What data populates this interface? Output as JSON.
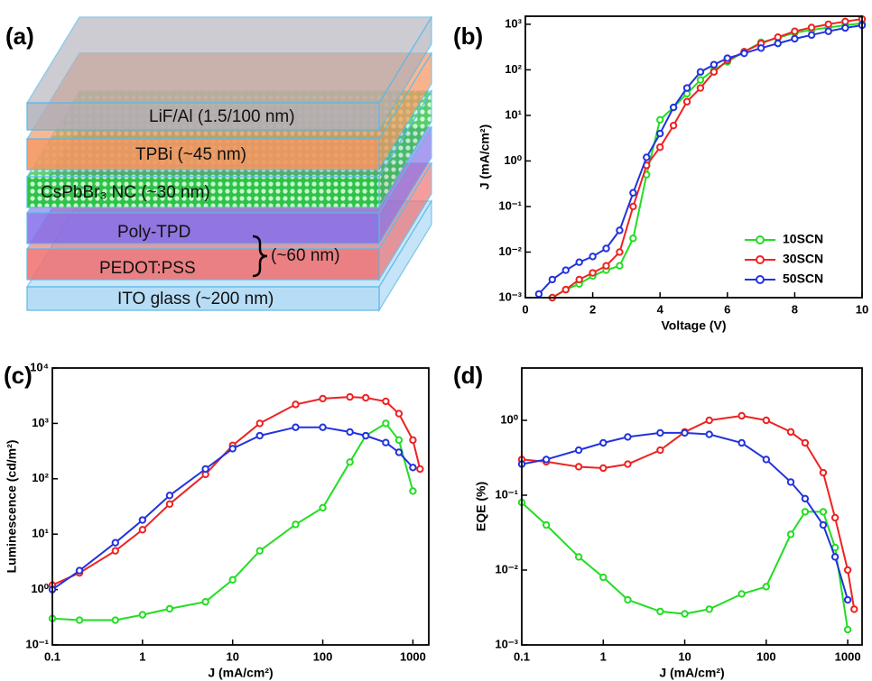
{
  "diagram": {
    "label": "(a)",
    "layers": [
      "LiF/Al (1.5/100 nm)",
      "TPBi (~45 nm)",
      "CsPbBr₃ NC (~30 nm)",
      "Poly-TPD",
      "PEDOT:PSS",
      "ITO glass (~200 nm)"
    ],
    "bracket_label": "(~60 nm)"
  },
  "chart_data": [
    {
      "type": "line",
      "label": "(b)",
      "x_label": "Voltage (V)",
      "y_label": "J (mA/cm²)",
      "y_scale": "log",
      "grid": false,
      "legend": "lower right",
      "x": [
        0.4,
        0.8,
        1.2,
        1.6,
        2,
        2.4,
        2.8,
        3.2,
        3.6,
        4,
        4.4,
        4.8,
        5.2,
        5.6,
        6,
        6.5,
        7,
        7.5,
        8,
        8.5,
        9,
        9.5,
        10
      ],
      "xlim": [
        0,
        10
      ],
      "xticks": [
        0,
        2,
        4,
        6,
        8,
        10
      ],
      "ylim": [
        0.001,
        1500
      ],
      "yticks": [
        {
          "value": 0.001,
          "label": "10⁻³"
        },
        {
          "value": 0.01,
          "label": "10⁻²"
        },
        {
          "value": 0.1,
          "label": "10⁻¹"
        },
        {
          "value": 1,
          "label": "10⁰"
        },
        {
          "value": 10,
          "label": "10¹"
        },
        {
          "value": 100,
          "label": "10²"
        },
        {
          "value": 1000,
          "label": "10³"
        }
      ],
      "series": [
        {
          "name": "10SCN",
          "color": "#22dd22",
          "values": [
            null,
            0.001,
            0.0015,
            0.002,
            0.003,
            0.004,
            0.005,
            0.02,
            0.5,
            8,
            15,
            30,
            60,
            100,
            150,
            250,
            400,
            500,
            650,
            750,
            850,
            950,
            1050
          ]
        },
        {
          "name": "30SCN",
          "color": "#ee2222",
          "values": [
            null,
            0.001,
            0.0015,
            0.0025,
            0.0035,
            0.005,
            0.01,
            0.1,
            0.8,
            2,
            6,
            20,
            40,
            90,
            160,
            250,
            380,
            520,
            700,
            850,
            1000,
            1150,
            1300
          ]
        },
        {
          "name": "50SCN",
          "color": "#2233dd",
          "values": [
            0.0012,
            0.0025,
            0.004,
            0.006,
            0.008,
            0.012,
            0.03,
            0.2,
            1.2,
            4,
            15,
            40,
            90,
            130,
            180,
            230,
            300,
            380,
            480,
            580,
            700,
            830,
            950
          ]
        }
      ]
    },
    {
      "type": "line",
      "label": "(c)",
      "x_label": "J (mA/cm²)",
      "y_label": "Luminescence (cd/m²)",
      "x_scale": "log",
      "y_scale": "log",
      "grid": false,
      "x": [
        0.1,
        0.2,
        0.5,
        1,
        2,
        5,
        10,
        20,
        50,
        100,
        200,
        300,
        500,
        700,
        1000,
        1200
      ],
      "xlim": [
        0.1,
        1500
      ],
      "xticks": [
        0.1,
        1,
        10,
        100,
        1000
      ],
      "ylim": [
        0.1,
        10000
      ],
      "yticks": [
        {
          "value": 0.1,
          "label": "10⁻¹"
        },
        {
          "value": 1,
          "label": "10⁰"
        },
        {
          "value": 10,
          "label": "10¹"
        },
        {
          "value": 100,
          "label": "10²"
        },
        {
          "value": 1000,
          "label": "10³"
        },
        {
          "value": 10000,
          "label": "10⁴"
        }
      ],
      "series": [
        {
          "color": "#22dd22",
          "values": [
            0.3,
            0.28,
            0.28,
            0.35,
            0.45,
            0.6,
            1.5,
            5,
            15,
            30,
            200,
            600,
            1000,
            500,
            60,
            null
          ]
        },
        {
          "color": "#ee2222",
          "values": [
            1.2,
            2,
            5,
            12,
            35,
            120,
            400,
            1000,
            2200,
            2800,
            3000,
            2900,
            2500,
            1500,
            500,
            150
          ]
        },
        {
          "color": "#2233dd",
          "values": [
            1,
            2.2,
            7,
            18,
            50,
            150,
            350,
            600,
            850,
            850,
            700,
            600,
            450,
            300,
            160,
            null
          ]
        }
      ]
    },
    {
      "type": "line",
      "label": "(d)",
      "x_label": "J (mA/cm²)",
      "y_label": "EQE (%)",
      "x_scale": "log",
      "y_scale": "log",
      "grid": false,
      "x": [
        0.1,
        0.2,
        0.5,
        1,
        2,
        5,
        10,
        20,
        50,
        100,
        200,
        300,
        500,
        700,
        1000,
        1200
      ],
      "xlim": [
        0.1,
        1500
      ],
      "xticks": [
        0.1,
        1,
        10,
        100,
        1000
      ],
      "ylim": [
        0.001,
        5
      ],
      "yticks": [
        {
          "value": 0.001,
          "label": "10⁻³"
        },
        {
          "value": 0.01,
          "label": "10⁻²"
        },
        {
          "value": 0.1,
          "label": "10⁻¹"
        },
        {
          "value": 1,
          "label": "10⁰"
        }
      ],
      "series": [
        {
          "color": "#22dd22",
          "values": [
            0.08,
            0.04,
            0.015,
            0.008,
            0.004,
            0.0028,
            0.0026,
            0.003,
            0.0048,
            0.006,
            0.03,
            0.06,
            0.06,
            0.02,
            0.0016,
            null
          ]
        },
        {
          "color": "#ee2222",
          "values": [
            0.3,
            0.28,
            0.24,
            0.23,
            0.26,
            0.4,
            0.7,
            1.0,
            1.15,
            1.0,
            0.7,
            0.5,
            0.2,
            0.05,
            0.01,
            0.003
          ]
        },
        {
          "color": "#2233dd",
          "values": [
            0.26,
            0.3,
            0.4,
            0.5,
            0.6,
            0.68,
            0.68,
            0.65,
            0.5,
            0.3,
            0.15,
            0.09,
            0.04,
            0.015,
            0.004,
            null
          ]
        }
      ]
    }
  ]
}
